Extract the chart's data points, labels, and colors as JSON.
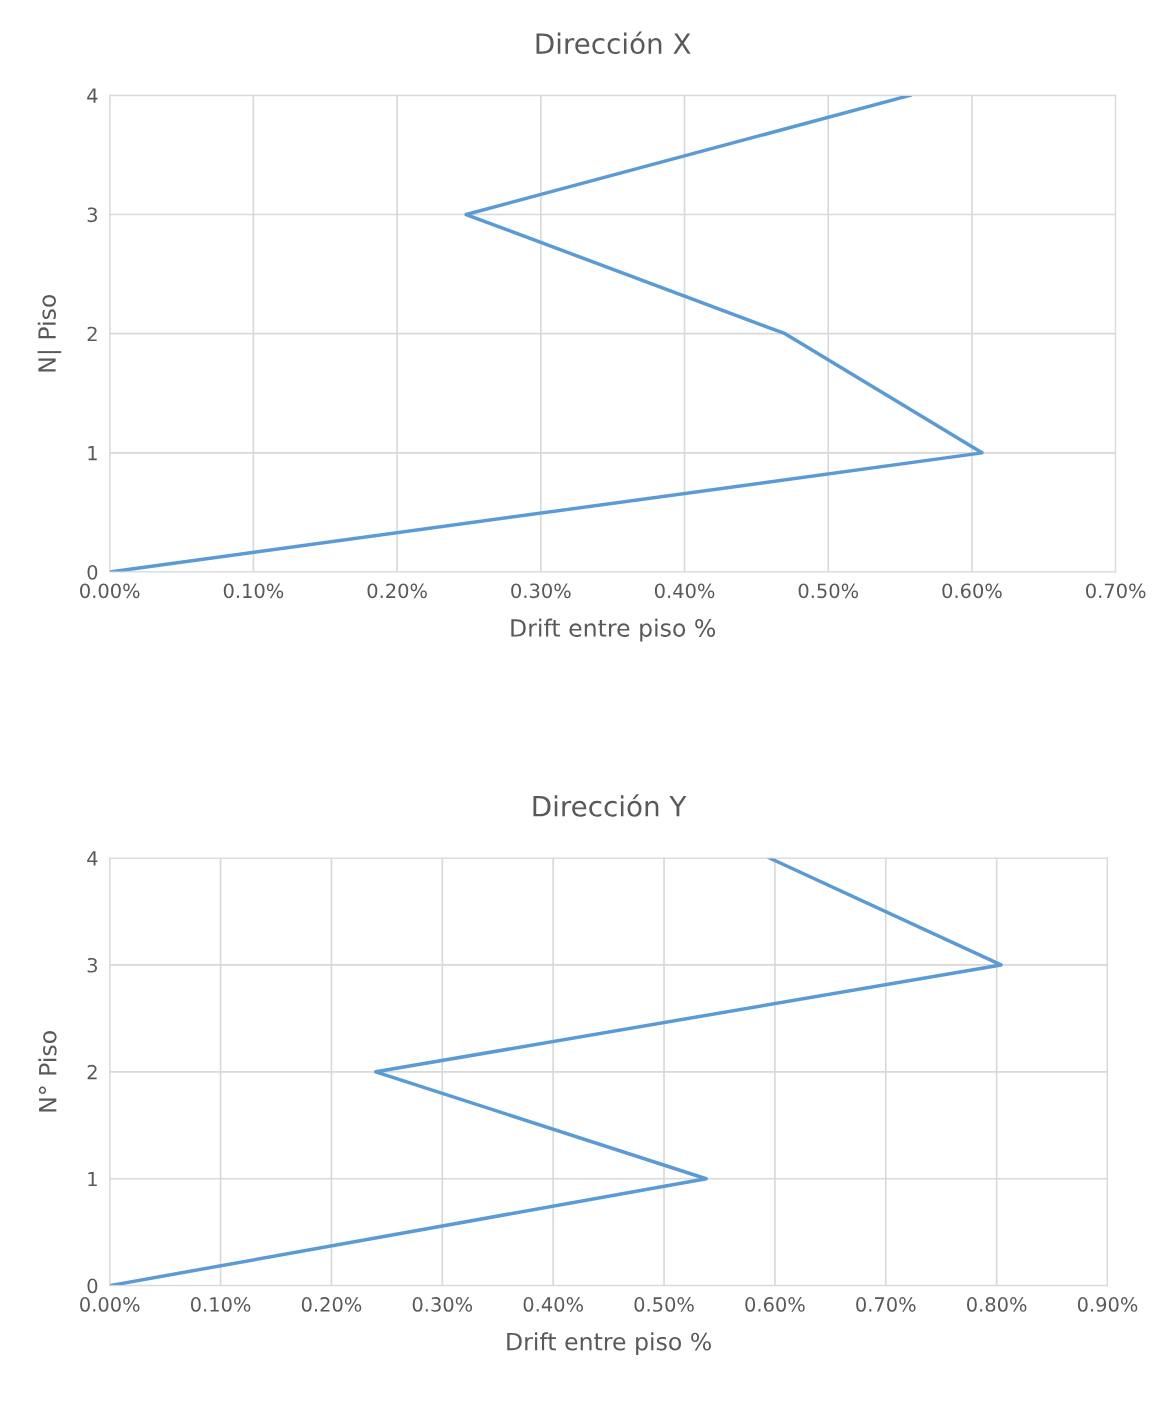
{
  "chart_data": [
    {
      "type": "line",
      "title": "Dirección X",
      "xlabel": "Drift entre piso %",
      "ylabel": "N| Piso",
      "series": [
        {
          "color": "#5b9bd5",
          "x": [
            0,
            0.607,
            0.47,
            0.248,
            0.557
          ],
          "values": [
            0,
            1,
            2,
            3,
            4
          ]
        }
      ],
      "xlim": [
        0,
        0.7
      ],
      "xticks": [
        {
          "value": 0,
          "label": "0.00%"
        },
        {
          "value": 0.1,
          "label": "0.10%"
        },
        {
          "value": 0.2,
          "label": "0.20%"
        },
        {
          "value": 0.3,
          "label": "0.30%"
        },
        {
          "value": 0.4,
          "label": "0.40%"
        },
        {
          "value": 0.5,
          "label": "0.50%"
        },
        {
          "value": 0.6,
          "label": "0.60%"
        },
        {
          "value": 0.7,
          "label": "0.70%"
        }
      ],
      "ylim": [
        0,
        4
      ],
      "yticks": [
        0,
        1,
        2,
        3,
        4
      ],
      "grid": true,
      "legend": false
    },
    {
      "type": "line",
      "title": "Dirección Y",
      "xlabel": "Drift entre piso %",
      "ylabel": "N° Piso",
      "series": [
        {
          "color": "#5b9bd5",
          "x": [
            0,
            0.538,
            0.24,
            0.804,
            0.595
          ],
          "values": [
            0,
            1,
            2,
            3,
            4
          ]
        }
      ],
      "xlim": [
        0,
        0.9
      ],
      "xticks": [
        {
          "value": 0,
          "label": "0.00%"
        },
        {
          "value": 0.1,
          "label": "0.10%"
        },
        {
          "value": 0.2,
          "label": "0.20%"
        },
        {
          "value": 0.3,
          "label": "0.30%"
        },
        {
          "value": 0.4,
          "label": "0.40%"
        },
        {
          "value": 0.5,
          "label": "0.50%"
        },
        {
          "value": 0.6,
          "label": "0.60%"
        },
        {
          "value": 0.7,
          "label": "0.70%"
        },
        {
          "value": 0.8,
          "label": "0.80%"
        },
        {
          "value": 0.9,
          "label": "0.90%"
        }
      ],
      "ylim": [
        0,
        4
      ],
      "yticks": [
        0,
        1,
        2,
        3,
        4
      ],
      "grid": true,
      "legend": false
    }
  ]
}
